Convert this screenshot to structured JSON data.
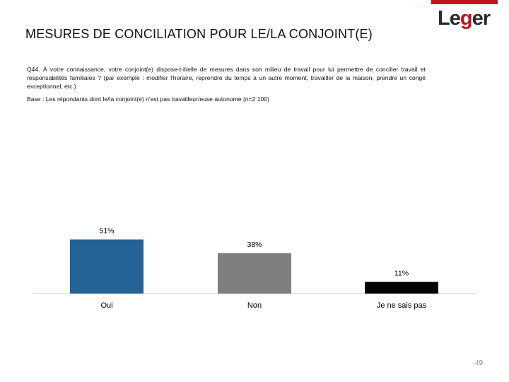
{
  "header": {
    "title": "MESURES DE CONCILIATION POUR LE/LA CONJOINT(E)",
    "logo_text_1": "Le",
    "logo_text_g": "g",
    "logo_text_2": "er"
  },
  "question": "Q44. À votre connaissance, votre conjoint(e) dispose-t-il/elle de mesures dans son milieu de travail pour lui permettre de concilier travail et responsabilités familiales ? (par exemple : modifier l'horaire, reprendre du temps à un autre moment, travailler de la maison, prendre un congé exceptionnel, etc.)",
  "base": "Base : Les répondants dont le/la conjoint(e) n'est pas travailleur/euse autonome (n=2 100)",
  "page_number": "49",
  "colors": {
    "oui": "#236496",
    "non": "#7f7f7f",
    "nsp": "#000000",
    "brand": "#c1121f"
  },
  "chart_data": {
    "type": "bar",
    "categories": [
      "Oui",
      "Non",
      "Je ne sais pas"
    ],
    "values": [
      51,
      38,
      11
    ],
    "value_labels": [
      "51%",
      "38%",
      "11%"
    ],
    "colors": [
      "#236496",
      "#7f7f7f",
      "#000000"
    ],
    "ylim": [
      0,
      100
    ],
    "title": "",
    "xlabel": "",
    "ylabel": ""
  }
}
